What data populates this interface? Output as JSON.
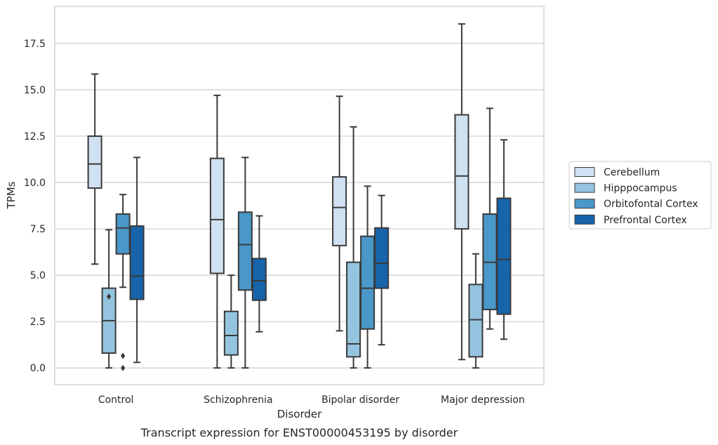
{
  "caption": "Transcript expression for ENST00000453195 by disorder",
  "chart_data": {
    "type": "box",
    "xlabel": "Disorder",
    "ylabel": "TPMs",
    "ylim": [
      -0.9,
      19.5
    ],
    "yticks": [
      "0.0",
      "2.5",
      "5.0",
      "7.5",
      "10.0",
      "12.5",
      "15.0",
      "17.5"
    ],
    "ytick_values": [
      0,
      2.5,
      5,
      7.5,
      10,
      12.5,
      15,
      17.5
    ],
    "grid": "horizontal",
    "legend_position": "right",
    "categories": [
      "Control",
      "Schizophrenia",
      "Bipolar disorder",
      "Major depression"
    ],
    "series": [
      {
        "name": "Cerebellum",
        "color": "#d0e1f2",
        "boxes": [
          {
            "whisker_low": 5.6,
            "q1": 9.7,
            "median": 11.0,
            "q3": 12.5,
            "whisker_high": 15.85,
            "outliers": []
          },
          {
            "whisker_low": 0.0,
            "q1": 5.1,
            "median": 8.0,
            "q3": 11.3,
            "whisker_high": 14.7,
            "outliers": []
          },
          {
            "whisker_low": 2.0,
            "q1": 6.6,
            "median": 8.65,
            "q3": 10.3,
            "whisker_high": 14.65,
            "outliers": []
          },
          {
            "whisker_low": 0.45,
            "q1": 7.5,
            "median": 10.35,
            "q3": 13.65,
            "whisker_high": 18.55,
            "outliers": []
          }
        ]
      },
      {
        "name": "Hipppocampus",
        "color": "#94c4df",
        "boxes": [
          {
            "whisker_low": 0.0,
            "q1": 0.8,
            "median": 2.55,
            "q3": 4.3,
            "whisker_high": 7.45,
            "outliers": [
              3.85
            ]
          },
          {
            "whisker_low": 0.0,
            "q1": 0.7,
            "median": 1.75,
            "q3": 3.05,
            "whisker_high": 5.0,
            "outliers": []
          },
          {
            "whisker_low": 0.0,
            "q1": 0.6,
            "median": 1.3,
            "q3": 5.7,
            "whisker_high": 13.0,
            "outliers": []
          },
          {
            "whisker_low": 0.0,
            "q1": 0.6,
            "median": 2.6,
            "q3": 4.5,
            "whisker_high": 6.15,
            "outliers": []
          }
        ]
      },
      {
        "name": "Orbitofontal Cortex",
        "color": "#4a98c9",
        "boxes": [
          {
            "whisker_low": 4.35,
            "q1": 6.15,
            "median": 7.55,
            "q3": 8.3,
            "whisker_high": 9.35,
            "outliers": [
              0.65,
              0.0
            ]
          },
          {
            "whisker_low": 0.0,
            "q1": 4.2,
            "median": 6.65,
            "q3": 8.4,
            "whisker_high": 11.35,
            "outliers": []
          },
          {
            "whisker_low": 0.0,
            "q1": 2.1,
            "median": 4.3,
            "q3": 7.1,
            "whisker_high": 9.8,
            "outliers": []
          },
          {
            "whisker_low": 2.1,
            "q1": 3.15,
            "median": 5.7,
            "q3": 8.3,
            "whisker_high": 14.0,
            "outliers": []
          }
        ]
      },
      {
        "name": "Prefrontal Cortex",
        "color": "#1764ab",
        "boxes": [
          {
            "whisker_low": 0.3,
            "q1": 3.7,
            "median": 4.95,
            "q3": 7.65,
            "whisker_high": 11.35,
            "outliers": []
          },
          {
            "whisker_low": 1.95,
            "q1": 3.65,
            "median": 4.7,
            "q3": 5.9,
            "whisker_high": 8.2,
            "outliers": []
          },
          {
            "whisker_low": 1.25,
            "q1": 4.3,
            "median": 5.65,
            "q3": 7.55,
            "whisker_high": 9.3,
            "outliers": []
          },
          {
            "whisker_low": 1.55,
            "q1": 2.9,
            "median": 5.85,
            "q3": 9.15,
            "whisker_high": 12.3,
            "outliers": []
          }
        ]
      }
    ]
  }
}
